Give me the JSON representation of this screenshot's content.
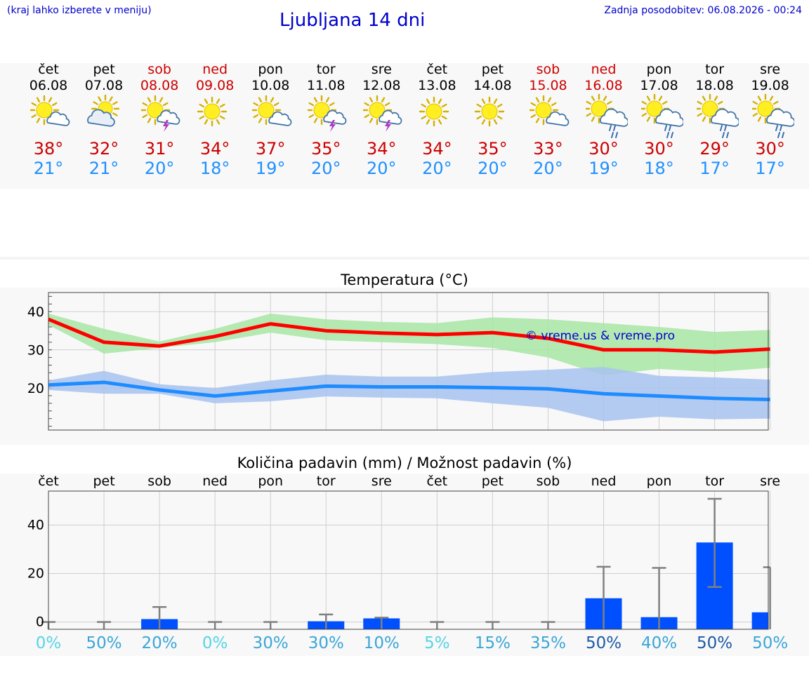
{
  "header": {
    "left_note": "(kraj lahko izberete v meniju)",
    "title": "Ljubljana 14 dni",
    "updated": "Zadnja posodobitev: 06.08.2026 - 00:24"
  },
  "days": [
    {
      "name": "čet",
      "date": "06.08",
      "weekend": false,
      "icon": "sun-cloud-icon",
      "tmax": "38°",
      "tmin": "21°"
    },
    {
      "name": "pet",
      "date": "07.08",
      "weekend": false,
      "icon": "cloud-sun-icon",
      "tmax": "32°",
      "tmin": "21°"
    },
    {
      "name": "sob",
      "date": "08.08",
      "weekend": true,
      "icon": "sun-thunderstorm-icon",
      "tmax": "31°",
      "tmin": "20°"
    },
    {
      "name": "ned",
      "date": "09.08",
      "weekend": true,
      "icon": "sun-icon",
      "tmax": "34°",
      "tmin": "18°"
    },
    {
      "name": "pon",
      "date": "10.08",
      "weekend": false,
      "icon": "sun-cloud-icon",
      "tmax": "37°",
      "tmin": "19°"
    },
    {
      "name": "tor",
      "date": "11.08",
      "weekend": false,
      "icon": "sun-thunderstorm-icon",
      "tmax": "35°",
      "tmin": "20°"
    },
    {
      "name": "sre",
      "date": "12.08",
      "weekend": false,
      "icon": "sun-thunderstorm-icon",
      "tmax": "34°",
      "tmin": "20°"
    },
    {
      "name": "čet",
      "date": "13.08",
      "weekend": false,
      "icon": "sun-icon",
      "tmax": "34°",
      "tmin": "20°"
    },
    {
      "name": "pet",
      "date": "14.08",
      "weekend": false,
      "icon": "sun-icon",
      "tmax": "35°",
      "tmin": "20°"
    },
    {
      "name": "sob",
      "date": "15.08",
      "weekend": true,
      "icon": "sun-cloud-icon",
      "tmax": "33°",
      "tmin": "20°"
    },
    {
      "name": "ned",
      "date": "16.08",
      "weekend": true,
      "icon": "sun-rain-icon",
      "tmax": "30°",
      "tmin": "19°"
    },
    {
      "name": "pon",
      "date": "17.08",
      "weekend": false,
      "icon": "sun-rain-icon",
      "tmax": "30°",
      "tmin": "18°"
    },
    {
      "name": "tor",
      "date": "18.08",
      "weekend": false,
      "icon": "sun-rain-icon",
      "tmax": "29°",
      "tmin": "17°"
    },
    {
      "name": "sre",
      "date": "19.08",
      "weekend": false,
      "icon": "sun-rain-icon",
      "tmax": "30°",
      "tmin": "17°"
    }
  ],
  "colors": {
    "weekend": "#cc0000",
    "tmax": "#cc0000",
    "tmin": "#1e90ff",
    "max_band": "#a8e6a4",
    "min_band": "#a8c3f0",
    "max_line": "#ff0000",
    "min_line": "#1e8cff",
    "bar": "#0050ff",
    "error_bar": "#808080",
    "credit": "#0000cc"
  },
  "chart_data": [
    {
      "type": "line",
      "title": "Temperatura (°C)",
      "x": [
        "06.08",
        "07.08",
        "08.08",
        "09.08",
        "10.08",
        "11.08",
        "12.08",
        "13.08",
        "14.08",
        "15.08",
        "16.08",
        "17.08",
        "18.08",
        "19.08"
      ],
      "ylim": [
        9,
        45
      ],
      "yticks": [
        20,
        30,
        40
      ],
      "grid": true,
      "annotation": "© vreme.us & vreme.pro",
      "series": [
        {
          "values": [
            38,
            32,
            31,
            33.5,
            36.8,
            35,
            34.4,
            34,
            34.5,
            33,
            30,
            30,
            29.4,
            30.2
          ],
          "band_low": [
            36.5,
            29,
            30.5,
            32,
            34.5,
            32.5,
            32,
            31.5,
            30.5,
            28,
            23.3,
            25,
            24.2,
            25.3
          ],
          "band_high": [
            39.5,
            35.5,
            32.2,
            35.5,
            39.5,
            38,
            37.3,
            37,
            38.5,
            38,
            37,
            36,
            34.7,
            35.2
          ]
        },
        {
          "values": [
            20.8,
            21.5,
            19.5,
            17.9,
            19.2,
            20.5,
            20.3,
            20.3,
            20.1,
            19.8,
            18.5,
            17.9,
            17.3,
            17
          ]
        },
        {
          "values": [
            20.8,
            21.5,
            19.5,
            17.9,
            19.2,
            20.5,
            20.3,
            20.3,
            20.1,
            19.8,
            18.5,
            17.9,
            17.3,
            17
          ],
          "band_low": [
            19.5,
            18.5,
            18.5,
            16,
            16.5,
            17.8,
            17.5,
            17.3,
            16,
            14.8,
            11.3,
            12.5,
            11.8,
            12
          ],
          "band_high": [
            22,
            24.5,
            21,
            20,
            22,
            23.5,
            23,
            23,
            24.2,
            24.8,
            25.5,
            23.2,
            22.8,
            22.2
          ]
        }
      ]
    },
    {
      "type": "bar",
      "title": "Količina padavin (mm) / Možnost padavin (%)",
      "categories": [
        "čet",
        "pet",
        "sob",
        "ned",
        "pon",
        "tor",
        "sre",
        "čet",
        "pet",
        "sob",
        "ned",
        "pon",
        "tor",
        "sre"
      ],
      "values": [
        0,
        0,
        1.2,
        0,
        0,
        0.3,
        1.5,
        0,
        0,
        0,
        9.8,
        2,
        32.8,
        4
      ],
      "error_high": [
        0,
        0,
        6.2,
        0,
        0,
        3.1,
        1.8,
        0,
        0,
        0,
        22.8,
        22.3,
        50.8,
        22.6
      ],
      "chance": [
        "0%",
        "50%",
        "20%",
        "0%",
        "30%",
        "30%",
        "10%",
        "5%",
        "15%",
        "35%",
        "50%",
        "40%",
        "50%",
        "50%"
      ],
      "ylim": [
        -3,
        54
      ],
      "yticks": [
        0,
        20,
        40
      ],
      "grid": true
    }
  ]
}
